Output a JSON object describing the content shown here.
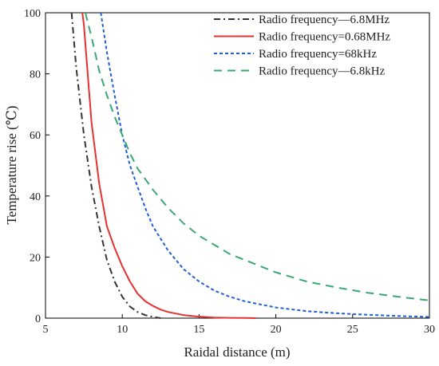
{
  "chart_data": {
    "type": "line",
    "xlabel": "Raidal distance (m)",
    "ylabel": "Temperature rise (℃)",
    "xlim": [
      5,
      30
    ],
    "ylim": [
      0,
      100
    ],
    "xticks": [
      "5",
      "10",
      "15",
      "20",
      "25",
      "30"
    ],
    "yticks": [
      "0",
      "20",
      "40",
      "60",
      "80",
      "100"
    ],
    "grid": false,
    "legend_position": "top-right",
    "series": [
      {
        "name": "Radio frequency—6.8MHz",
        "color": "#333333",
        "dash": "dash-dot",
        "x": [
          6.7,
          7.0,
          7.5,
          8.0,
          8.5,
          9.0,
          9.5,
          10.0,
          10.5,
          11.0,
          11.5,
          12.0,
          12.5
        ],
        "y": [
          100,
          82,
          60,
          43,
          30,
          19,
          12,
          7,
          3.8,
          2,
          1,
          0.4,
          0
        ]
      },
      {
        "name": "Radio frequency=0.68MHz",
        "color": "#e8302e",
        "dash": "solid",
        "x": [
          7.4,
          7.5,
          8.0,
          8.5,
          9.0,
          9.5,
          10.0,
          10.5,
          11.0,
          11.5,
          12.0,
          12.5,
          13.0,
          14.0,
          15.0,
          16.0,
          17.0,
          18.0,
          18.7
        ],
        "y": [
          100,
          96,
          64,
          44,
          30,
          23,
          17,
          12,
          8,
          5.5,
          4,
          2.8,
          2,
          1,
          0.5,
          0.2,
          0.1,
          0.05,
          0
        ]
      },
      {
        "name": "Radio frequency=68kHz",
        "color": "#1f5fd6",
        "dash": "dotted",
        "x": [
          8.6,
          9.0,
          9.5,
          10.0,
          10.5,
          11.0,
          11.5,
          12.0,
          13.0,
          14.0,
          15.0,
          16.0,
          17.0,
          18.0,
          19.0,
          20.0,
          22.0,
          24.0,
          26.0,
          28.0,
          30.0
        ],
        "y": [
          100,
          87,
          73,
          60,
          50,
          43,
          36,
          30,
          22,
          16,
          12,
          9,
          7,
          5.5,
          4.5,
          3.5,
          2.3,
          1.6,
          1.1,
          0.7,
          0.4
        ]
      },
      {
        "name": "Radio frequency—6.8kHz",
        "color": "#3aa872",
        "dash": "dashed",
        "x": [
          7.6,
          8.0,
          8.5,
          9.0,
          9.5,
          10.0,
          10.5,
          11.0,
          12.0,
          13.0,
          14.0,
          15.0,
          16.0,
          17.0,
          18.0,
          19.0,
          20.0,
          22.0,
          24.0,
          26.0,
          28.0,
          30.0
        ],
        "y": [
          100,
          92,
          81,
          73,
          66,
          60,
          54,
          49,
          42,
          36,
          31,
          27,
          24,
          21,
          19,
          17,
          15,
          12,
          10,
          8.3,
          7,
          5.8
        ]
      }
    ]
  }
}
